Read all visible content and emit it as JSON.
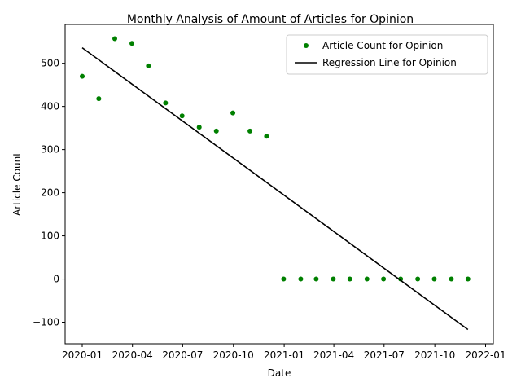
{
  "chart_data": {
    "type": "scatter",
    "title": "Monthly Analysis of Amount of Articles for Opinion",
    "xlabel": "Date",
    "ylabel": "Article Count",
    "xlim": [
      "2019-12-01",
      "2022-01-15"
    ],
    "ylim": [
      -150,
      590
    ],
    "x_ticks": [
      "2020-01",
      "2020-04",
      "2020-07",
      "2020-10",
      "2021-01",
      "2021-04",
      "2021-07",
      "2021-10",
      "2022-01"
    ],
    "y_ticks": [
      -100,
      0,
      100,
      200,
      300,
      400,
      500
    ],
    "legend_position": "top-right",
    "grid": false,
    "series": [
      {
        "name": "Article Count for Opinion",
        "kind": "points",
        "color": "#008000",
        "x": [
          "2020-01-01",
          "2020-01-31",
          "2020-02-29",
          "2020-03-31",
          "2020-04-30",
          "2020-05-31",
          "2020-06-30",
          "2020-07-31",
          "2020-08-31",
          "2020-09-30",
          "2020-10-31",
          "2020-11-30",
          "2020-12-31",
          "2021-01-31",
          "2021-02-28",
          "2021-03-31",
          "2021-04-30",
          "2021-05-31",
          "2021-06-30",
          "2021-07-31",
          "2021-08-31",
          "2021-09-30",
          "2021-10-31",
          "2021-11-30"
        ],
        "y": [
          470,
          418,
          557,
          546,
          494,
          408,
          378,
          352,
          343,
          385,
          343,
          331,
          0,
          0,
          0,
          0,
          0,
          0,
          0,
          0,
          0,
          0,
          0,
          0
        ]
      },
      {
        "name": "Regression Line for Opinion",
        "kind": "line",
        "color": "#000000",
        "x": [
          "2020-01-01",
          "2021-11-30"
        ],
        "y": [
          536,
          -117
        ]
      }
    ]
  }
}
